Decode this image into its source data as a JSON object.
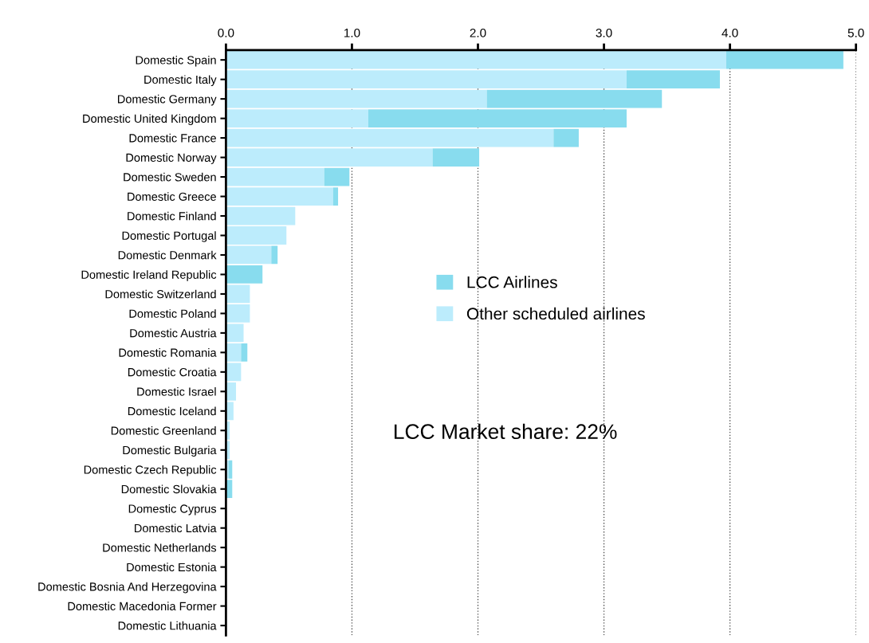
{
  "chart_data": {
    "type": "bar",
    "orientation": "horizontal",
    "stacked": true,
    "categories": [
      "Domestic Spain",
      "Domestic Italy",
      "Domestic Germany",
      "Domestic United Kingdom",
      "Domestic France",
      "Domestic Norway",
      "Domestic Sweden",
      "Domestic Greece",
      "Domestic Finland",
      "Domestic Portugal",
      "Domestic Denmark",
      "Domestic Ireland Republic",
      "Domestic Switzerland",
      "Domestic Poland",
      "Domestic Austria",
      "Domestic Romania",
      "Domestic Croatia",
      "Domestic Israel",
      "Domestic Iceland",
      "Domestic Greenland",
      "Domestic Bulgaria",
      "Domestic Czech Republic",
      "Domestic Slovakia",
      "Domestic Cyprus",
      "Domestic Latvia",
      "Domestic Netherlands",
      "Domestic Estonia",
      "Domestic Bosnia And Herzegovina",
      "Domestic Macedonia Former",
      "Domestic Lithuania"
    ],
    "series": [
      {
        "name": "Other scheduled airlines",
        "color": "#bcecfc",
        "values": [
          3.97,
          3.18,
          2.07,
          1.13,
          2.6,
          1.64,
          0.78,
          0.85,
          0.55,
          0.48,
          0.36,
          null,
          0.19,
          0.19,
          0.14,
          0.12,
          0.12,
          0.08,
          0.06,
          0.03,
          0.03,
          0.02,
          null,
          null,
          null,
          null,
          null,
          null,
          null,
          null
        ]
      },
      {
        "name": "LCC Airlines",
        "color": "#88dcee",
        "values": [
          0.93,
          0.74,
          1.39,
          2.05,
          0.2,
          0.37,
          0.2,
          0.04,
          null,
          null,
          0.05,
          0.29,
          null,
          null,
          null,
          0.05,
          null,
          null,
          null,
          null,
          null,
          0.03,
          0.05,
          null,
          null,
          null,
          null,
          null,
          null,
          null
        ]
      }
    ],
    "xlim": [
      0,
      5.0
    ],
    "xticks": [
      {
        "value": 0,
        "label": "0.0"
      },
      {
        "value": 1,
        "label": "1.0"
      },
      {
        "value": 2,
        "label": "2.0"
      },
      {
        "value": 3,
        "label": "3.0"
      },
      {
        "value": 4,
        "label": "4.0"
      },
      {
        "value": 5,
        "label": "5.0"
      }
    ],
    "grid": "x",
    "legend": "center",
    "annotations": [
      "LCC Market share: 22%"
    ]
  }
}
